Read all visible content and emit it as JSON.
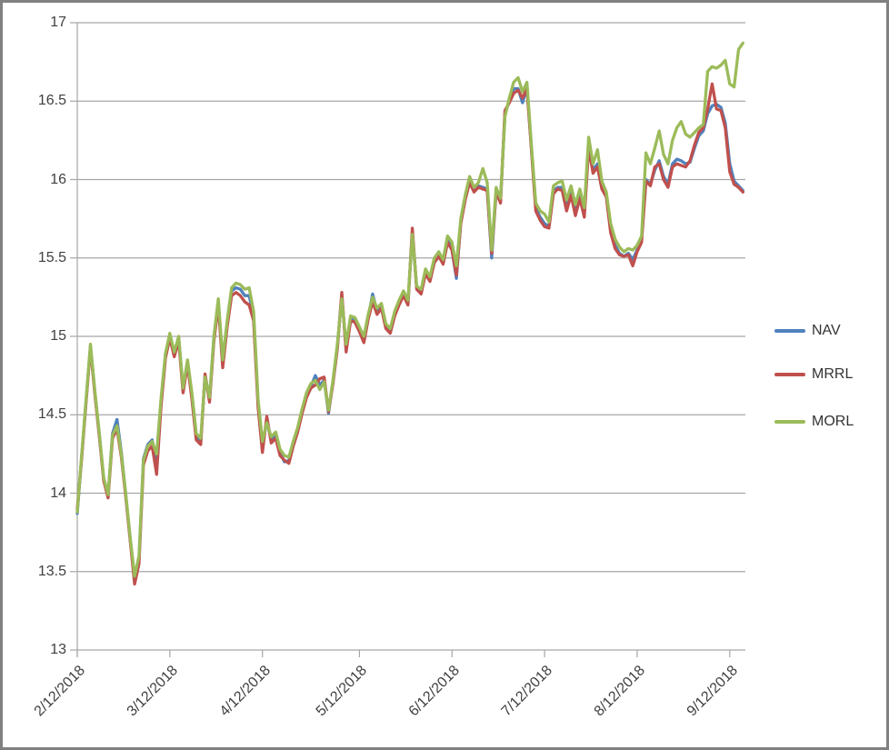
{
  "colors": {
    "grid": "#A6A6A6",
    "axis_text": "#404040",
    "frame_border": "#808080",
    "nav": "#4F81BD",
    "mrrl": "#C0504D",
    "morl": "#9BBB59"
  },
  "chart_data": {
    "type": "line",
    "title": "",
    "grid": true,
    "legend_position": "right",
    "y_axis": {
      "min": 13,
      "max": 17,
      "step": 0.5,
      "tick_labels": [
        "17",
        "16.5",
        "16",
        "15.5",
        "15",
        "14.5",
        "14",
        "13.5",
        "13"
      ]
    },
    "x_axis": {
      "tick_labels": [
        "2/12/2018",
        "3/12/2018",
        "4/12/2018",
        "5/12/2018",
        "6/12/2018",
        "7/12/2018",
        "8/12/2018",
        "9/12/2018"
      ],
      "tick_indices": [
        0,
        21,
        42,
        64,
        85,
        106,
        127,
        148
      ]
    },
    "series": [
      {
        "name": "NAV",
        "color": "#4F81BD",
        "values": [
          13.87,
          14.23,
          14.59,
          14.94,
          14.64,
          14.37,
          14.09,
          13.98,
          14.38,
          14.47,
          14.26,
          13.99,
          13.71,
          13.44,
          13.57,
          14.22,
          14.31,
          14.34,
          14.2,
          14.58,
          14.88,
          15.01,
          14.89,
          14.99,
          14.66,
          14.84,
          14.62,
          14.36,
          14.33,
          14.75,
          14.6,
          14.99,
          15.22,
          14.83,
          15.08,
          15.29,
          15.31,
          15.3,
          15.26,
          15.26,
          15.13,
          14.58,
          14.3,
          14.46,
          14.34,
          14.37,
          14.26,
          14.2,
          14.21,
          14.31,
          14.4,
          14.52,
          14.62,
          14.68,
          14.75,
          14.69,
          14.72,
          14.51,
          14.71,
          14.93,
          15.26,
          14.92,
          15.11,
          15.1,
          15.04,
          14.98,
          15.12,
          15.27,
          15.16,
          15.19,
          15.06,
          15.03,
          15.14,
          15.21,
          15.27,
          15.21,
          15.66,
          15.31,
          15.28,
          15.41,
          15.36,
          15.48,
          15.52,
          15.47,
          15.62,
          15.55,
          15.37,
          15.73,
          15.88,
          16.0,
          15.93,
          15.96,
          15.95,
          15.94,
          15.5,
          15.93,
          15.86,
          16.42,
          16.5,
          16.58,
          16.58,
          16.49,
          16.59,
          16.21,
          15.82,
          15.76,
          15.72,
          15.7,
          15.93,
          15.95,
          15.95,
          15.83,
          15.92,
          15.8,
          15.9,
          15.79,
          16.22,
          16.06,
          16.1,
          15.96,
          15.9,
          15.68,
          15.58,
          15.53,
          15.51,
          15.53,
          15.49,
          15.55,
          15.62,
          16.0,
          15.97,
          16.06,
          16.12,
          16.02,
          15.97,
          16.1,
          16.13,
          16.12,
          16.1,
          16.11,
          16.2,
          16.28,
          16.31,
          16.42,
          16.47,
          16.48,
          16.46,
          16.36,
          16.1,
          15.99,
          15.96,
          15.93
        ]
      },
      {
        "name": "MRRL",
        "color": "#C0504D",
        "values": [
          13.9,
          14.22,
          14.58,
          14.93,
          14.63,
          14.36,
          14.08,
          13.97,
          14.35,
          14.41,
          14.23,
          13.98,
          13.7,
          13.42,
          13.55,
          14.18,
          14.27,
          14.3,
          14.12,
          14.55,
          14.86,
          14.99,
          14.87,
          14.97,
          14.64,
          14.82,
          14.6,
          14.34,
          14.31,
          14.76,
          14.58,
          14.97,
          15.2,
          14.8,
          15.06,
          15.26,
          15.28,
          15.26,
          15.22,
          15.2,
          15.1,
          14.55,
          14.26,
          14.49,
          14.32,
          14.35,
          14.24,
          14.21,
          14.19,
          14.3,
          14.39,
          14.51,
          14.61,
          14.67,
          14.69,
          14.73,
          14.74,
          14.52,
          14.7,
          14.92,
          15.28,
          14.9,
          15.1,
          15.09,
          15.03,
          14.96,
          15.11,
          15.22,
          15.14,
          15.18,
          15.05,
          15.02,
          15.13,
          15.2,
          15.26,
          15.2,
          15.69,
          15.3,
          15.27,
          15.4,
          15.35,
          15.47,
          15.51,
          15.46,
          15.6,
          15.55,
          15.39,
          15.72,
          15.87,
          15.98,
          15.92,
          15.95,
          15.94,
          15.93,
          15.53,
          15.92,
          15.85,
          16.44,
          16.49,
          16.55,
          16.57,
          16.52,
          16.58,
          16.2,
          15.8,
          15.74,
          15.7,
          15.69,
          15.91,
          15.94,
          15.93,
          15.8,
          15.9,
          15.77,
          15.88,
          15.76,
          16.2,
          16.04,
          16.08,
          15.94,
          15.89,
          15.66,
          15.56,
          15.52,
          15.51,
          15.52,
          15.45,
          15.54,
          15.6,
          15.99,
          15.96,
          16.08,
          16.1,
          16.0,
          15.95,
          16.08,
          16.1,
          16.09,
          16.08,
          16.12,
          16.22,
          16.3,
          16.33,
          16.45,
          16.61,
          16.45,
          16.44,
          16.33,
          16.05,
          15.97,
          15.95,
          15.92
        ]
      },
      {
        "name": "MORL",
        "color": "#9BBB59",
        "values": [
          13.88,
          14.24,
          14.6,
          14.95,
          14.65,
          14.38,
          14.1,
          13.99,
          14.37,
          14.43,
          14.25,
          14.0,
          13.72,
          13.47,
          13.6,
          14.21,
          14.3,
          14.33,
          14.25,
          14.6,
          14.89,
          15.02,
          14.9,
          15.0,
          14.67,
          14.85,
          14.64,
          14.38,
          14.35,
          14.74,
          14.61,
          15.0,
          15.24,
          14.85,
          15.1,
          15.31,
          15.34,
          15.33,
          15.3,
          15.31,
          15.16,
          14.6,
          14.33,
          14.45,
          14.36,
          14.39,
          14.28,
          14.24,
          14.23,
          14.33,
          14.42,
          14.54,
          14.64,
          14.7,
          14.72,
          14.66,
          14.71,
          14.53,
          14.72,
          14.95,
          15.24,
          14.95,
          15.13,
          15.12,
          15.06,
          15.0,
          15.14,
          15.25,
          15.18,
          15.21,
          15.08,
          15.05,
          15.16,
          15.23,
          15.29,
          15.23,
          15.65,
          15.32,
          15.3,
          15.43,
          15.38,
          15.5,
          15.54,
          15.49,
          15.64,
          15.6,
          15.45,
          15.75,
          15.9,
          16.02,
          15.95,
          15.98,
          16.07,
          15.98,
          15.55,
          15.95,
          15.88,
          16.4,
          16.52,
          16.62,
          16.65,
          16.56,
          16.62,
          16.23,
          15.85,
          15.8,
          15.78,
          15.73,
          15.96,
          15.98,
          15.99,
          15.87,
          15.96,
          15.84,
          15.94,
          15.82,
          16.27,
          16.1,
          16.19,
          15.99,
          15.92,
          15.72,
          15.62,
          15.57,
          15.54,
          15.56,
          15.55,
          15.58,
          15.64,
          16.17,
          16.1,
          16.2,
          16.31,
          16.16,
          16.1,
          16.25,
          16.33,
          16.37,
          16.29,
          16.27,
          16.3,
          16.33,
          16.35,
          16.69,
          16.72,
          16.71,
          16.73,
          16.76,
          16.61,
          16.59,
          16.83,
          16.87
        ]
      }
    ]
  }
}
